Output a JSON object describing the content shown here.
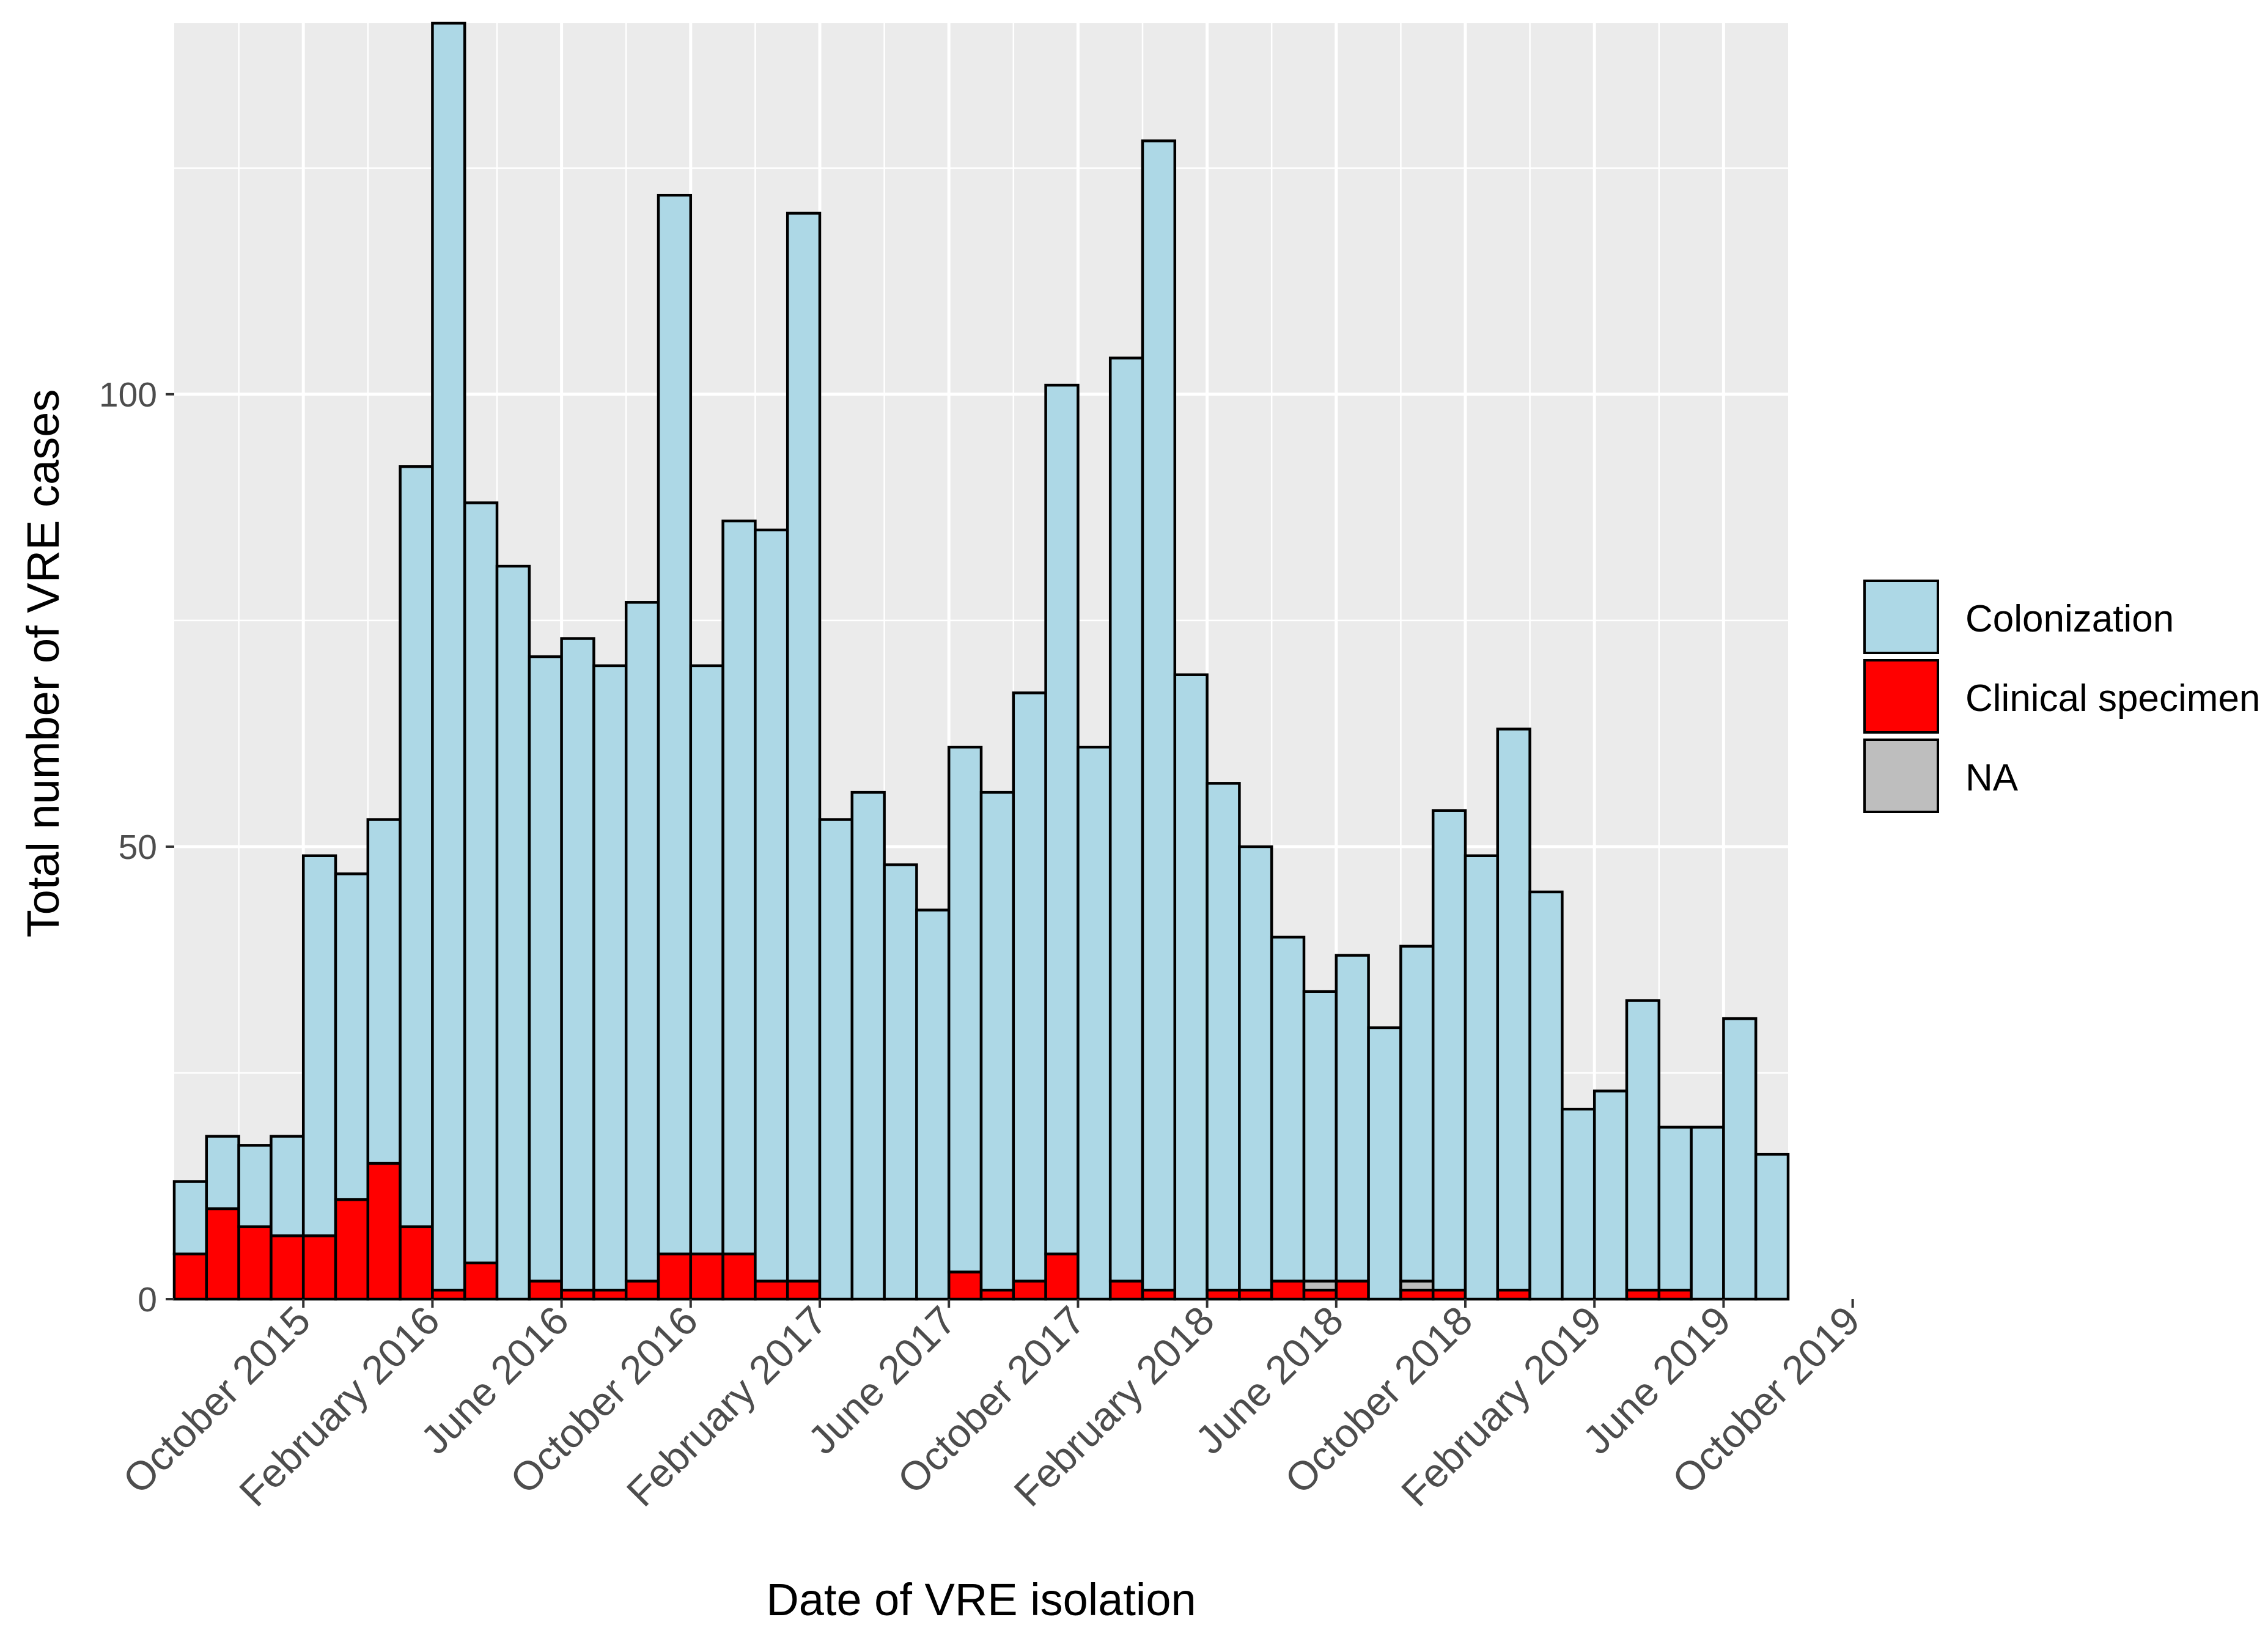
{
  "chart_data": {
    "type": "bar",
    "stacked": true,
    "xlabel": "Date of VRE isolation",
    "ylabel": "Total number of VRE cases",
    "ylim": [
      0,
      141
    ],
    "yticks": [
      0,
      50,
      100
    ],
    "x_tick_labels": [
      "October 2015",
      "February 2016",
      "June 2016",
      "October 2016",
      "February 2017",
      "June 2017",
      "October 2017",
      "February 2018",
      "June 2018",
      "October 2018",
      "February 2019",
      "June 2019",
      "October 2019"
    ],
    "x_tick_positions": [
      4,
      8,
      12,
      16,
      20,
      24,
      28,
      32,
      36,
      40,
      44,
      48,
      52
    ],
    "x_range": [
      0,
      50
    ],
    "legend_position": "right",
    "colors": {
      "Colonization": "#add8e6",
      "Clinical specimen": "#ff0000",
      "NA": "#bebebe",
      "panel": "#ebebeb",
      "grid": "#ffffff",
      "bar_outline": "#000000"
    },
    "series": [
      {
        "name": "Clinical specimen",
        "values": [
          5,
          10,
          8,
          7,
          7,
          11,
          15,
          8,
          1,
          4,
          0,
          2,
          1,
          1,
          2,
          5,
          5,
          5,
          2,
          2,
          0,
          0,
          0,
          0,
          3,
          1,
          2,
          5,
          0,
          2,
          1,
          0,
          1,
          1,
          2,
          1,
          2,
          0,
          1,
          1,
          0,
          1,
          0,
          0,
          0,
          1,
          1,
          0,
          0,
          0
        ]
      },
      {
        "name": "NA",
        "values": [
          0,
          0,
          0,
          0,
          0,
          0,
          0,
          0,
          0,
          0,
          0,
          0,
          0,
          0,
          0,
          0,
          0,
          0,
          0,
          0,
          0,
          0,
          0,
          0,
          0,
          0,
          0,
          0,
          0,
          0,
          0,
          0,
          0,
          0,
          0,
          1,
          0,
          0,
          1,
          0,
          0,
          0,
          0,
          0,
          0,
          0,
          0,
          0,
          0,
          0
        ]
      },
      {
        "name": "Colonization",
        "values": [
          8,
          8,
          9,
          11,
          42,
          36,
          38,
          84,
          140,
          84,
          81,
          69,
          72,
          69,
          75,
          117,
          65,
          81,
          83,
          118,
          53,
          56,
          48,
          43,
          58,
          55,
          65,
          96,
          61,
          102,
          127,
          69,
          56,
          49,
          38,
          32,
          36,
          30,
          37,
          53,
          49,
          62,
          45,
          21,
          23,
          32,
          18,
          19,
          31,
          16
        ]
      }
    ]
  }
}
